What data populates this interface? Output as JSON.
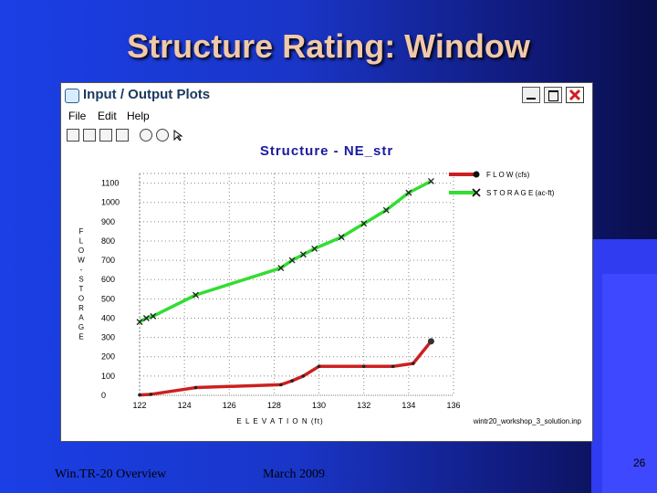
{
  "slide": {
    "title": "Structure Rating: Window",
    "footer_left": "Win.TR-20 Overview",
    "footer_mid": "March 2009",
    "page_number": "26"
  },
  "window": {
    "title": "Input / Output Plots",
    "menu": [
      "File",
      "Edit",
      "Help"
    ],
    "toolbar_icons": [
      "save-icon",
      "print-preview-icon",
      "print-icon",
      "copy-icon",
      "zoom-in-icon",
      "zoom-out-icon",
      "pointer-icon"
    ]
  },
  "chart_data": {
    "type": "line",
    "title": "Structure - NE_str",
    "xlabel": "E L E V A T I O N (ft)",
    "ylabel": "F L O W - S T O R A G E",
    "caption": "wintr20_workshop_3_solution.inp",
    "xlim": [
      122,
      136
    ],
    "ylim": [
      0,
      1150
    ],
    "x_ticks": [
      "122",
      "124",
      "126",
      "128",
      "130",
      "132",
      "134",
      "136"
    ],
    "y_ticks": [
      "0",
      "100",
      "200",
      "300",
      "400",
      "500",
      "600",
      "700",
      "800",
      "900",
      "1000",
      "1100"
    ],
    "grid": true,
    "legend_position": "top-right",
    "series": [
      {
        "name": "F L O W (cfs)",
        "color": "#cc2020",
        "marker": "dot",
        "x": [
          122.0,
          122.5,
          124.5,
          128.3,
          128.8,
          129.3,
          130.0,
          132.0,
          133.3,
          134.2,
          135.0
        ],
        "y": [
          2,
          5,
          40,
          55,
          75,
          100,
          150,
          150,
          150,
          165,
          280
        ]
      },
      {
        "name": "S T O R A G E (ac-ft)",
        "color": "#33dd33",
        "marker": "x",
        "x": [
          122.0,
          122.3,
          122.6,
          124.5,
          128.3,
          128.8,
          129.3,
          129.8,
          131.0,
          132.0,
          133.0,
          134.0,
          135.0
        ],
        "y": [
          380,
          400,
          410,
          520,
          660,
          700,
          730,
          760,
          820,
          890,
          960,
          1050,
          1110
        ]
      }
    ]
  }
}
